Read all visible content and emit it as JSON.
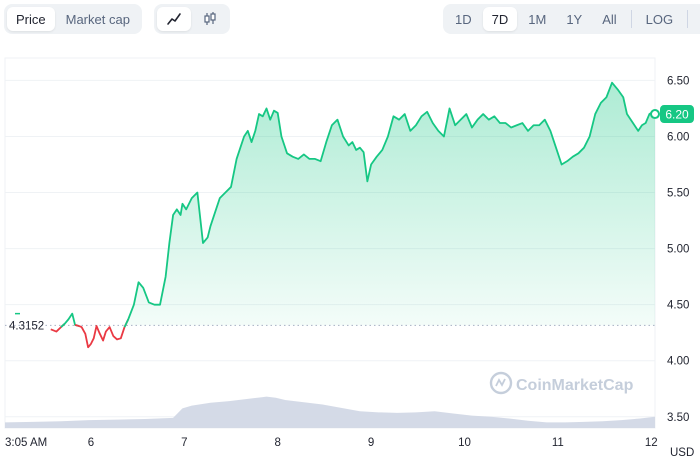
{
  "toolbar": {
    "left_tabs": [
      {
        "label": "Price",
        "active": true
      },
      {
        "label": "Market cap",
        "active": false
      }
    ],
    "chart_types": [
      {
        "icon": "line-chart-icon",
        "active": true
      },
      {
        "icon": "candlestick-icon",
        "active": false
      }
    ],
    "ranges": [
      {
        "label": "1D",
        "active": false
      },
      {
        "label": "7D",
        "active": true
      },
      {
        "label": "1M",
        "active": false
      },
      {
        "label": "1Y",
        "active": false
      },
      {
        "label": "All",
        "active": false
      }
    ],
    "log_label": "LOG",
    "download_icon": "download-icon"
  },
  "watermark": "CoinMarketCap",
  "colors": {
    "up": "#16c784",
    "down": "#ea3943",
    "volume": "#cfd6e4",
    "grid": "#eff2f5",
    "badge": "#16c784"
  },
  "chart_data": {
    "type": "line",
    "title": "",
    "xlabel": "",
    "ylabel": "",
    "currency_label": "USD",
    "y_ticks": [
      "6.50",
      "6.00",
      "5.50",
      "5.00",
      "4.50",
      "4.00",
      "3.50"
    ],
    "y_tick_values": [
      6.5,
      6.0,
      5.5,
      5.0,
      4.5,
      4.0,
      3.5
    ],
    "ylim": [
      3.4,
      6.7
    ],
    "x_ticks": [
      {
        "label": "3:05 AM",
        "x": 0
      },
      {
        "label": "6",
        "x": 0.92
      },
      {
        "label": "7",
        "x": 1.92
      },
      {
        "label": "8",
        "x": 2.92
      },
      {
        "label": "9",
        "x": 3.92
      },
      {
        "label": "10",
        "x": 4.92
      },
      {
        "label": "11",
        "x": 5.92
      },
      {
        "label": "12",
        "x": 6.92
      }
    ],
    "xlim": [
      0,
      6.96
    ],
    "baseline_value": 4.3152,
    "baseline_label": "4.3152",
    "current_value": 6.2,
    "current_label": "6.20",
    "price": {
      "x": [
        0.49,
        0.55,
        0.6,
        0.64,
        0.68,
        0.72,
        0.75,
        0.79,
        0.82,
        0.86,
        0.89,
        0.92,
        0.95,
        0.98,
        1.01,
        1.05,
        1.08,
        1.12,
        1.16,
        1.2,
        1.24,
        1.28,
        1.32,
        1.38,
        1.43,
        1.48,
        1.54,
        1.6,
        1.66,
        1.72,
        1.76,
        1.8,
        1.84,
        1.88,
        1.9,
        1.94,
        2.0,
        2.06,
        2.12,
        2.17,
        2.2,
        2.24,
        2.3,
        2.36,
        2.42,
        2.48,
        2.52,
        2.56,
        2.6,
        2.64,
        2.68,
        2.72,
        2.76,
        2.8,
        2.84,
        2.88,
        2.92,
        2.96,
        3.02,
        3.08,
        3.14,
        3.2,
        3.26,
        3.32,
        3.38,
        3.44,
        3.5,
        3.56,
        3.62,
        3.68,
        3.72,
        3.76,
        3.8,
        3.84,
        3.88,
        3.92,
        3.98,
        4.04,
        4.1,
        4.16,
        4.22,
        4.28,
        4.34,
        4.4,
        4.46,
        4.52,
        4.58,
        4.64,
        4.7,
        4.76,
        4.82,
        4.88,
        4.94,
        5.0,
        5.06,
        5.12,
        5.18,
        5.24,
        5.3,
        5.36,
        5.42,
        5.48,
        5.54,
        5.6,
        5.66,
        5.72,
        5.78,
        5.84,
        5.9,
        5.96,
        6.02,
        6.08,
        6.14,
        6.2,
        6.26,
        6.32,
        6.38,
        6.44,
        6.5,
        6.56,
        6.62,
        6.66,
        6.7,
        6.74,
        6.78,
        6.82,
        6.86,
        6.9,
        6.94,
        6.96
      ],
      "y": [
        4.28,
        4.26,
        4.3,
        4.33,
        4.37,
        4.42,
        4.32,
        4.31,
        4.3,
        4.24,
        4.12,
        4.15,
        4.2,
        4.31,
        4.25,
        4.18,
        4.26,
        4.3,
        4.22,
        4.19,
        4.2,
        4.3,
        4.37,
        4.5,
        4.7,
        4.65,
        4.52,
        4.5,
        4.5,
        4.75,
        5.05,
        5.3,
        5.35,
        5.3,
        5.4,
        5.35,
        5.45,
        5.5,
        5.05,
        5.1,
        5.2,
        5.3,
        5.45,
        5.5,
        5.55,
        5.8,
        5.9,
        6.0,
        6.05,
        5.95,
        6.05,
        6.2,
        6.18,
        6.25,
        6.15,
        6.23,
        6.21,
        6.0,
        5.85,
        5.82,
        5.8,
        5.84,
        5.8,
        5.8,
        5.78,
        5.95,
        6.1,
        6.15,
        6.0,
        5.92,
        5.95,
        5.88,
        5.9,
        5.86,
        5.6,
        5.75,
        5.82,
        5.88,
        6.0,
        6.18,
        6.15,
        6.2,
        6.05,
        6.1,
        6.18,
        6.22,
        6.12,
        6.05,
        6.0,
        6.25,
        6.1,
        6.15,
        6.2,
        6.08,
        6.15,
        6.2,
        6.15,
        6.18,
        6.12,
        6.12,
        6.08,
        6.1,
        6.12,
        6.05,
        6.1,
        6.1,
        6.15,
        6.05,
        5.9,
        5.75,
        5.78,
        5.82,
        5.85,
        5.9,
        6.0,
        6.2,
        6.3,
        6.35,
        6.48,
        6.42,
        6.35,
        6.2,
        6.15,
        6.1,
        6.05,
        6.1,
        6.12,
        6.2,
        6.22,
        6.2
      ]
    },
    "volume_band": {
      "ylim": [
        0,
        1
      ],
      "x": [
        0,
        0.3,
        0.6,
        0.9,
        1.2,
        1.5,
        1.8,
        1.9,
        2.0,
        2.2,
        2.4,
        2.6,
        2.75,
        2.8,
        2.9,
        3.0,
        3.2,
        3.4,
        3.6,
        3.8,
        4.0,
        4.2,
        4.4,
        4.6,
        4.8,
        5.0,
        5.2,
        5.4,
        5.6,
        5.8,
        6.0,
        6.2,
        6.4,
        6.6,
        6.8,
        6.96
      ],
      "y": [
        0.1,
        0.11,
        0.12,
        0.14,
        0.15,
        0.16,
        0.18,
        0.35,
        0.4,
        0.45,
        0.48,
        0.52,
        0.55,
        0.56,
        0.54,
        0.5,
        0.46,
        0.42,
        0.36,
        0.3,
        0.28,
        0.27,
        0.28,
        0.3,
        0.26,
        0.22,
        0.2,
        0.17,
        0.13,
        0.1,
        0.1,
        0.11,
        0.12,
        0.14,
        0.17,
        0.2
      ]
    }
  }
}
